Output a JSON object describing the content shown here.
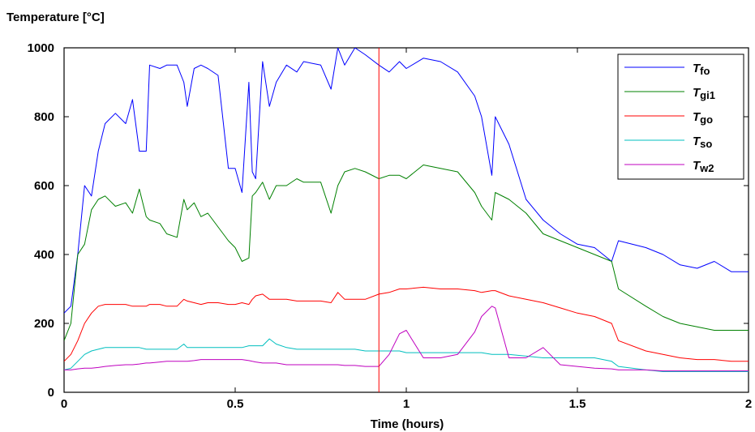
{
  "chart_data": {
    "type": "line",
    "ylabel": "Temperature  [°C]",
    "xlabel": "Time  (hours)",
    "xlim": [
      0,
      2
    ],
    "ylim": [
      0,
      1000
    ],
    "xticks": [
      0,
      0.5,
      1,
      1.5,
      2
    ],
    "xtick_labels": [
      "0",
      "0.5",
      "1",
      "1.5",
      "2"
    ],
    "yticks": [
      0,
      200,
      400,
      600,
      800,
      1000
    ],
    "ytick_labels": [
      "0",
      "200",
      "400",
      "600",
      "800",
      "1000"
    ],
    "grid": false,
    "legend_position": "top-right",
    "marker_line": {
      "x": 0.92,
      "color": "#ff0000"
    },
    "series": [
      {
        "name": "Tfo",
        "label_main": "T",
        "label_sub": "fo",
        "color": "#0000ff",
        "x": [
          0,
          0.02,
          0.04,
          0.06,
          0.08,
          0.1,
          0.12,
          0.15,
          0.18,
          0.2,
          0.22,
          0.24,
          0.25,
          0.28,
          0.3,
          0.33,
          0.35,
          0.36,
          0.38,
          0.4,
          0.42,
          0.45,
          0.48,
          0.5,
          0.52,
          0.54,
          0.55,
          0.56,
          0.58,
          0.6,
          0.62,
          0.65,
          0.68,
          0.7,
          0.75,
          0.78,
          0.8,
          0.82,
          0.85,
          0.88,
          0.92,
          0.95,
          0.98,
          1.0,
          1.05,
          1.1,
          1.15,
          1.2,
          1.22,
          1.25,
          1.26,
          1.3,
          1.35,
          1.4,
          1.45,
          1.5,
          1.55,
          1.6,
          1.62,
          1.7,
          1.75,
          1.8,
          1.85,
          1.9,
          1.95,
          2.0
        ],
        "y": [
          230,
          250,
          400,
          600,
          570,
          700,
          780,
          810,
          780,
          850,
          700,
          700,
          950,
          940,
          950,
          950,
          900,
          830,
          940,
          950,
          940,
          920,
          650,
          650,
          580,
          900,
          640,
          620,
          960,
          830,
          900,
          950,
          930,
          960,
          950,
          880,
          1000,
          950,
          1000,
          980,
          950,
          930,
          960,
          940,
          970,
          960,
          930,
          860,
          800,
          630,
          800,
          720,
          560,
          500,
          460,
          430,
          420,
          380,
          440,
          420,
          400,
          370,
          360,
          380,
          350,
          350
        ]
      },
      {
        "name": "Tgi1",
        "label_main": "T",
        "label_sub": "gi1",
        "color": "#008000",
        "x": [
          0,
          0.02,
          0.04,
          0.06,
          0.08,
          0.1,
          0.12,
          0.15,
          0.18,
          0.2,
          0.22,
          0.24,
          0.25,
          0.28,
          0.3,
          0.33,
          0.35,
          0.36,
          0.38,
          0.4,
          0.42,
          0.45,
          0.48,
          0.5,
          0.52,
          0.54,
          0.55,
          0.56,
          0.58,
          0.6,
          0.62,
          0.65,
          0.68,
          0.7,
          0.75,
          0.78,
          0.8,
          0.82,
          0.85,
          0.88,
          0.92,
          0.95,
          0.98,
          1.0,
          1.05,
          1.1,
          1.15,
          1.2,
          1.22,
          1.25,
          1.26,
          1.3,
          1.35,
          1.4,
          1.45,
          1.5,
          1.55,
          1.6,
          1.62,
          1.7,
          1.75,
          1.8,
          1.85,
          1.9,
          1.95,
          2.0
        ],
        "y": [
          150,
          200,
          400,
          430,
          530,
          560,
          570,
          540,
          550,
          520,
          590,
          510,
          500,
          490,
          460,
          450,
          560,
          530,
          550,
          510,
          520,
          480,
          440,
          420,
          380,
          390,
          570,
          580,
          610,
          560,
          600,
          600,
          620,
          610,
          610,
          520,
          600,
          640,
          650,
          640,
          620,
          630,
          630,
          620,
          660,
          650,
          640,
          580,
          540,
          500,
          580,
          560,
          520,
          460,
          440,
          420,
          400,
          380,
          300,
          250,
          220,
          200,
          190,
          180,
          180,
          180
        ]
      },
      {
        "name": "Tgo",
        "label_main": "T",
        "label_sub": "go",
        "color": "#ff0000",
        "x": [
          0,
          0.02,
          0.04,
          0.06,
          0.08,
          0.1,
          0.12,
          0.15,
          0.18,
          0.2,
          0.22,
          0.24,
          0.25,
          0.28,
          0.3,
          0.33,
          0.35,
          0.36,
          0.38,
          0.4,
          0.42,
          0.45,
          0.48,
          0.5,
          0.52,
          0.54,
          0.55,
          0.56,
          0.58,
          0.6,
          0.62,
          0.65,
          0.68,
          0.7,
          0.75,
          0.78,
          0.8,
          0.82,
          0.85,
          0.88,
          0.92,
          0.95,
          0.98,
          1.0,
          1.05,
          1.1,
          1.15,
          1.2,
          1.22,
          1.25,
          1.26,
          1.3,
          1.35,
          1.4,
          1.45,
          1.5,
          1.55,
          1.6,
          1.62,
          1.7,
          1.75,
          1.8,
          1.85,
          1.9,
          1.95,
          2.0
        ],
        "y": [
          90,
          110,
          150,
          200,
          230,
          250,
          255,
          255,
          255,
          250,
          250,
          250,
          255,
          255,
          250,
          250,
          270,
          265,
          260,
          255,
          260,
          260,
          255,
          255,
          260,
          255,
          270,
          280,
          285,
          270,
          270,
          270,
          265,
          265,
          265,
          260,
          290,
          270,
          270,
          270,
          285,
          290,
          300,
          300,
          305,
          300,
          300,
          295,
          290,
          295,
          295,
          280,
          270,
          260,
          245,
          230,
          220,
          200,
          150,
          120,
          110,
          100,
          95,
          95,
          90,
          90
        ]
      },
      {
        "name": "Tso",
        "label_main": "T",
        "label_sub": "so",
        "color": "#00bfbf",
        "x": [
          0,
          0.02,
          0.04,
          0.06,
          0.08,
          0.1,
          0.12,
          0.15,
          0.18,
          0.2,
          0.22,
          0.24,
          0.25,
          0.28,
          0.3,
          0.33,
          0.35,
          0.36,
          0.38,
          0.4,
          0.42,
          0.45,
          0.48,
          0.5,
          0.52,
          0.54,
          0.55,
          0.56,
          0.58,
          0.6,
          0.62,
          0.65,
          0.68,
          0.7,
          0.75,
          0.78,
          0.8,
          0.82,
          0.85,
          0.88,
          0.92,
          0.95,
          0.98,
          1.0,
          1.05,
          1.1,
          1.15,
          1.2,
          1.22,
          1.25,
          1.26,
          1.3,
          1.35,
          1.4,
          1.45,
          1.5,
          1.55,
          1.6,
          1.62,
          1.7,
          1.75,
          1.8,
          1.85,
          1.9,
          1.95,
          2.0
        ],
        "y": [
          65,
          70,
          90,
          110,
          120,
          125,
          130,
          130,
          130,
          130,
          130,
          125,
          125,
          125,
          125,
          125,
          140,
          130,
          130,
          130,
          130,
          130,
          130,
          130,
          130,
          135,
          135,
          135,
          135,
          155,
          140,
          130,
          125,
          125,
          125,
          125,
          125,
          125,
          125,
          120,
          120,
          120,
          120,
          115,
          115,
          115,
          115,
          115,
          115,
          110,
          110,
          110,
          105,
          100,
          100,
          100,
          100,
          90,
          75,
          65,
          60,
          60,
          60,
          60,
          60,
          60
        ]
      },
      {
        "name": "Tw2",
        "label_main": "T",
        "label_sub": "w2",
        "color": "#bf00bf",
        "x": [
          0,
          0.02,
          0.04,
          0.06,
          0.08,
          0.1,
          0.12,
          0.15,
          0.18,
          0.2,
          0.22,
          0.24,
          0.25,
          0.28,
          0.3,
          0.33,
          0.35,
          0.36,
          0.38,
          0.4,
          0.42,
          0.45,
          0.48,
          0.5,
          0.52,
          0.54,
          0.55,
          0.56,
          0.58,
          0.6,
          0.62,
          0.65,
          0.68,
          0.7,
          0.75,
          0.78,
          0.8,
          0.82,
          0.85,
          0.88,
          0.92,
          0.95,
          0.98,
          1.0,
          1.05,
          1.1,
          1.15,
          1.2,
          1.22,
          1.25,
          1.26,
          1.3,
          1.35,
          1.4,
          1.45,
          1.5,
          1.55,
          1.6,
          1.62,
          1.7,
          1.75,
          1.8,
          1.85,
          1.9,
          1.95,
          2.0
        ],
        "y": [
          65,
          65,
          68,
          70,
          70,
          72,
          75,
          78,
          80,
          80,
          82,
          85,
          85,
          88,
          90,
          90,
          90,
          90,
          92,
          95,
          95,
          95,
          95,
          95,
          95,
          92,
          90,
          88,
          85,
          85,
          85,
          80,
          80,
          80,
          80,
          80,
          80,
          78,
          78,
          75,
          75,
          110,
          170,
          180,
          100,
          100,
          110,
          175,
          220,
          250,
          245,
          100,
          100,
          130,
          80,
          75,
          70,
          68,
          65,
          65,
          62,
          62,
          62,
          62,
          62,
          62
        ]
      }
    ]
  }
}
